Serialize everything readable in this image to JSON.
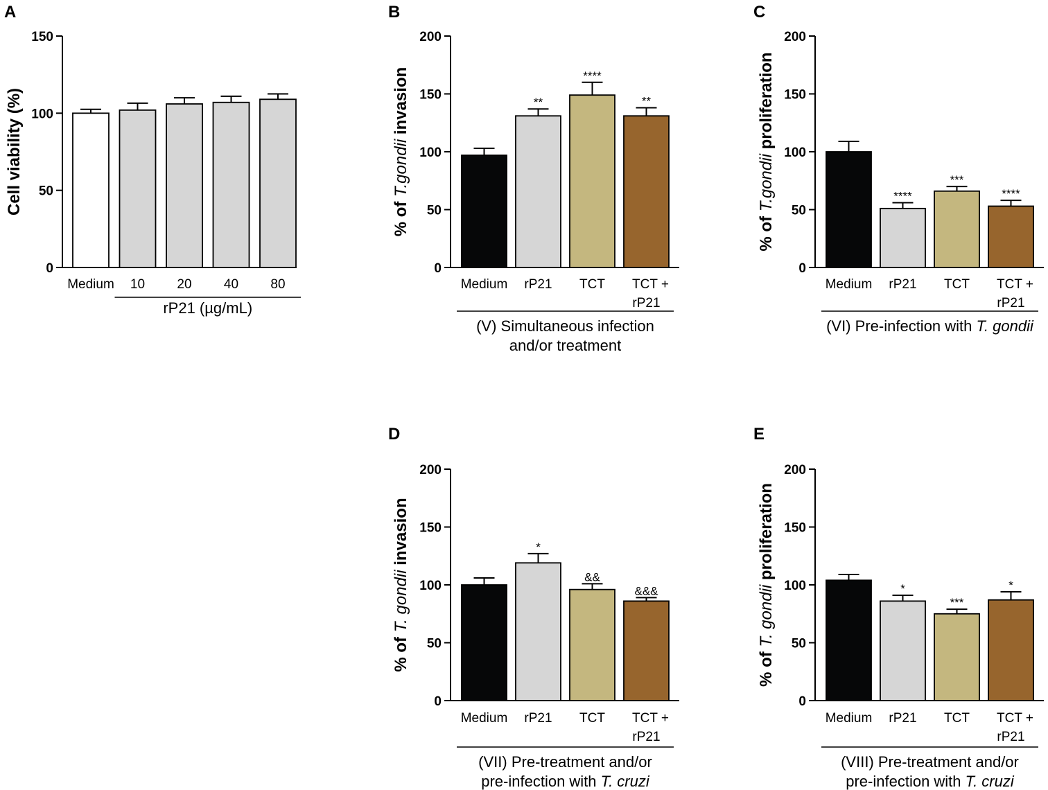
{
  "chart_data": [
    {
      "id": "A",
      "type": "bar",
      "panel_letter": "A",
      "ylabel": {
        "pre": "Cell viability (%)",
        "ital": "",
        "post": ""
      },
      "ylim": [
        0,
        150
      ],
      "yticks": [
        0,
        50,
        100,
        150
      ],
      "categories": [
        "Medium",
        "10",
        "20",
        "40",
        "80"
      ],
      "values": [
        100,
        102,
        106,
        107,
        109
      ],
      "errors": [
        2.5,
        4.5,
        4,
        4,
        3.5
      ],
      "significance": [
        "",
        "",
        "",
        "",
        ""
      ],
      "colors": [
        "#ffffff",
        "#d6d6d6",
        "#d6d6d6",
        "#d6d6d6",
        "#d6d6d6"
      ],
      "group": {
        "lines": [
          [
            {
              "t": "rP21 (µg/mL)"
            }
          ]
        ],
        "from": 1,
        "to": 4
      }
    },
    {
      "id": "B",
      "type": "bar",
      "panel_letter": "B",
      "ylabel": {
        "pre": "% of ",
        "ital": "T.gondii",
        "post": " invasion"
      },
      "ylim": [
        0,
        200
      ],
      "yticks": [
        0,
        50,
        100,
        150,
        200
      ],
      "categories": [
        "Medium",
        "rP21",
        "TCT",
        "TCT +|rP21"
      ],
      "values": [
        97,
        131,
        149,
        131
      ],
      "errors": [
        6,
        6,
        11,
        7
      ],
      "significance": [
        "",
        "**",
        "****",
        "**"
      ],
      "colors": [
        "#060708",
        "#d6d6d6",
        "#c4b77f",
        "#97652d"
      ],
      "group": {
        "lines": [
          [
            {
              "t": "(V) Simultaneous infection"
            }
          ],
          [
            {
              "t": "and/or treatment"
            }
          ]
        ],
        "from": 0,
        "to": 3
      }
    },
    {
      "id": "C",
      "type": "bar",
      "panel_letter": "C",
      "ylabel": {
        "pre": "% of ",
        "ital": "T.gondii",
        "post": " proliferation"
      },
      "ylim": [
        0,
        200
      ],
      "yticks": [
        0,
        50,
        100,
        150,
        200
      ],
      "categories": [
        "Medium",
        "rP21",
        "TCT",
        "TCT +|rP21"
      ],
      "values": [
        100,
        51,
        66,
        53
      ],
      "errors": [
        9,
        5,
        4,
        5
      ],
      "significance": [
        "",
        "****",
        "***",
        "****"
      ],
      "colors": [
        "#060708",
        "#d6d6d6",
        "#c4b77f",
        "#97652d"
      ],
      "group": {
        "lines": [
          [
            {
              "t": "(VI) Pre-infection with "
            },
            {
              "t": "T. gondii",
              "i": true
            }
          ]
        ],
        "from": 0,
        "to": 3
      }
    },
    {
      "id": "D",
      "type": "bar",
      "panel_letter": "D",
      "ylabel": {
        "pre": "% of ",
        "ital": "T. gondii",
        "post": " invasion"
      },
      "ylim": [
        0,
        200
      ],
      "yticks": [
        0,
        50,
        100,
        150,
        200
      ],
      "categories": [
        "Medium",
        "rP21",
        "TCT",
        "TCT +|rP21"
      ],
      "values": [
        100,
        119,
        96,
        86
      ],
      "errors": [
        6,
        8,
        5,
        3
      ],
      "significance": [
        "",
        "*",
        "&&",
        "&&&"
      ],
      "colors": [
        "#060708",
        "#d6d6d6",
        "#c4b77f",
        "#97652d"
      ],
      "group": {
        "lines": [
          [
            {
              "t": "(VII) Pre-treatment and/or"
            }
          ],
          [
            {
              "t": "pre-infection with "
            },
            {
              "t": "T. cruzi",
              "i": true
            }
          ]
        ],
        "from": 0,
        "to": 3
      }
    },
    {
      "id": "E",
      "type": "bar",
      "panel_letter": "E",
      "ylabel": {
        "pre": "% of ",
        "ital": "T. gondii",
        "post": " proliferation"
      },
      "ylim": [
        0,
        200
      ],
      "yticks": [
        0,
        50,
        100,
        150,
        200
      ],
      "categories": [
        "Medium",
        "rP21",
        "TCT",
        "TCT +|rP21"
      ],
      "values": [
        104,
        86,
        75,
        87
      ],
      "errors": [
        5,
        5,
        4,
        7
      ],
      "significance": [
        "",
        "*",
        "***",
        "*"
      ],
      "colors": [
        "#060708",
        "#d6d6d6",
        "#c4b77f",
        "#97652d"
      ],
      "group": {
        "lines": [
          [
            {
              "t": "(VIII) Pre-treatment and/or"
            }
          ],
          [
            {
              "t": "pre-infection with "
            },
            {
              "t": "T. cruzi",
              "i": true
            }
          ]
        ],
        "from": 0,
        "to": 3
      }
    }
  ]
}
